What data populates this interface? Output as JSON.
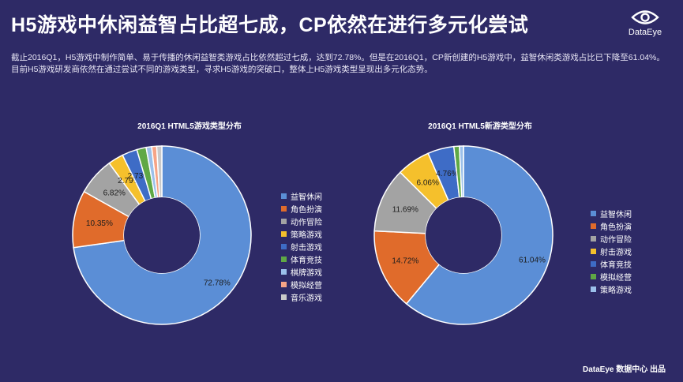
{
  "header": {
    "title": "H5游戏中休闲益智占比超七成，CP依然在进行多元化尝试",
    "logo_text": "DataEye",
    "intro": "截止2016Q1，H5游戏中制作简单、易于传播的休闲益智类游戏占比依然超过七成，达到72.78%。但是在2016Q1，CP新创建的H5游戏中，益智休闲类游戏占比已下降至61.04%。目前H5游戏研发商依然在通过尝试不同的游戏类型，寻求H5游戏的突破口，整体上H5游戏类型呈现出多元化态势。"
  },
  "footer": {
    "credit": "DataEye 数据中心 出品"
  },
  "chart_data": [
    {
      "type": "pie",
      "donut": true,
      "title": "2016Q1 HTML5游戏类型分布",
      "categories": [
        "益智休闲",
        "角色扮演",
        "动作冒险",
        "策略游戏",
        "射击游戏",
        "体育竞技",
        "棋牌游戏",
        "模拟经营",
        "音乐游戏"
      ],
      "values": [
        72.78,
        10.35,
        6.82,
        2.79,
        2.73,
        1.7,
        1.0,
        0.9,
        0.93
      ],
      "colors": [
        "#5b8ed6",
        "#e06b2b",
        "#a3a3a3",
        "#f5c02c",
        "#3e6cc6",
        "#5fa845",
        "#9bc0ea",
        "#f6a486",
        "#c9c9c9"
      ],
      "data_labels": [
        "72.78%",
        "10.35%",
        "6.82%",
        "2.79%",
        "2.73%",
        "",
        "",
        "",
        ""
      ],
      "legend": "right"
    },
    {
      "type": "pie",
      "donut": true,
      "title": "2016Q1 HTML5新游类型分布",
      "categories": [
        "益智休闲",
        "角色扮演",
        "动作冒险",
        "射击游戏",
        "体育竞技",
        "模拟经营",
        "策略游戏"
      ],
      "values": [
        61.04,
        14.72,
        11.69,
        6.06,
        4.76,
        1.0,
        0.73
      ],
      "colors": [
        "#5b8ed6",
        "#e06b2b",
        "#a3a3a3",
        "#f5c02c",
        "#3e6cc6",
        "#5fa845",
        "#9bc0ea"
      ],
      "data_labels": [
        "61.04%",
        "14.72%",
        "11.69%",
        "6.06%",
        "4.76%",
        "",
        ""
      ],
      "legend": "right"
    }
  ]
}
